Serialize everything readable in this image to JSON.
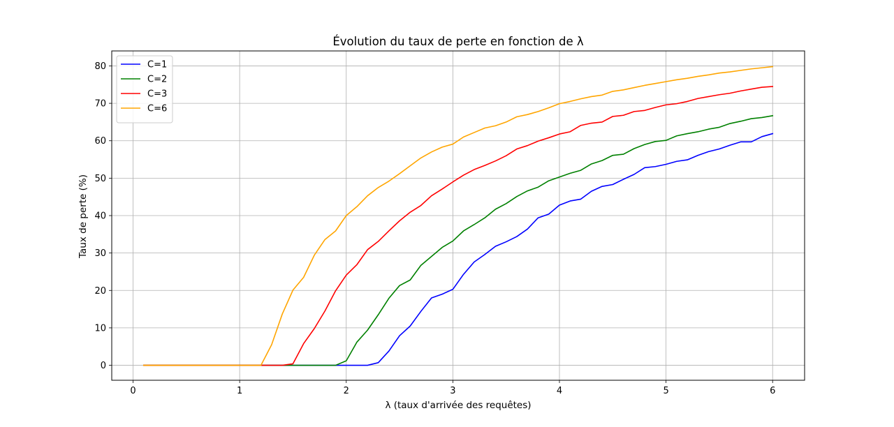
{
  "chart_data": {
    "type": "line",
    "title": "Évolution du taux de perte en fonction de λ",
    "xlabel": "λ (taux d'arrivée des requêtes)",
    "ylabel": "Taux de perte (%)",
    "xlim": [
      -0.2,
      6.3
    ],
    "ylim": [
      -4,
      84
    ],
    "xticks": [
      0,
      1,
      2,
      3,
      4,
      5,
      6
    ],
    "yticks": [
      0,
      10,
      20,
      30,
      40,
      50,
      60,
      70,
      80
    ],
    "grid": true,
    "legend_position": "top-left",
    "x": [
      0.1,
      0.2,
      0.3,
      0.4,
      0.5,
      0.6,
      0.7,
      0.8,
      0.9,
      1.0,
      1.1,
      1.2,
      1.3,
      1.4,
      1.5,
      1.6,
      1.7,
      1.8,
      1.9,
      2.0,
      2.1,
      2.2,
      2.3,
      2.4,
      2.5,
      2.6,
      2.7,
      2.8,
      2.9,
      3.0,
      3.1,
      3.2,
      3.3,
      3.4,
      3.5,
      3.6,
      3.7,
      3.8,
      3.9,
      4.0,
      4.1,
      4.2,
      4.3,
      4.4,
      4.5,
      4.6,
      4.7,
      4.8,
      4.9,
      5.0,
      5.1,
      5.2,
      5.3,
      5.4,
      5.5,
      5.6,
      5.7,
      5.8,
      5.9,
      6.0
    ],
    "series": [
      {
        "name": "C=1",
        "color": "#0000ff",
        "values": [
          0,
          0,
          0,
          0,
          0,
          0,
          0,
          0,
          0,
          0,
          0,
          0,
          0,
          0,
          0,
          0,
          0,
          0,
          0,
          0,
          0,
          0,
          0.7,
          3.8,
          7.9,
          10.5,
          14.4,
          18.0,
          19.0,
          20.3,
          24.3,
          27.6,
          29.6,
          31.8,
          33.0,
          34.4,
          36.4,
          39.4,
          40.4,
          42.8,
          43.9,
          44.4,
          46.5,
          47.8,
          48.3,
          49.7,
          51.0,
          52.8,
          53.1,
          53.7,
          54.5,
          54.9,
          56.1,
          57.1,
          57.8,
          58.8,
          59.7,
          59.7,
          61.1,
          61.9
        ]
      },
      {
        "name": "C=2",
        "color": "#008000",
        "values": [
          0,
          0,
          0,
          0,
          0,
          0,
          0,
          0,
          0,
          0,
          0,
          0,
          0,
          0,
          0,
          0,
          0,
          0,
          0,
          1.2,
          6.2,
          9.4,
          13.5,
          17.9,
          21.3,
          22.8,
          26.7,
          29.1,
          31.5,
          33.2,
          35.9,
          37.6,
          39.4,
          41.7,
          43.2,
          45.1,
          46.6,
          47.6,
          49.3,
          50.3,
          51.3,
          52.1,
          53.8,
          54.7,
          56.1,
          56.4,
          57.9,
          59.0,
          59.8,
          60.1,
          61.3,
          61.9,
          62.4,
          63.1,
          63.6,
          64.6,
          65.2,
          65.9,
          66.2,
          66.7
        ]
      },
      {
        "name": "C=3",
        "color": "#ff0000",
        "values": [
          0,
          0,
          0,
          0,
          0,
          0,
          0,
          0,
          0,
          0,
          0,
          0,
          0,
          0,
          0.4,
          5.8,
          9.8,
          14.5,
          19.9,
          24.1,
          26.9,
          30.9,
          33.1,
          35.9,
          38.6,
          40.9,
          42.7,
          45.3,
          47.1,
          49.0,
          50.8,
          52.3,
          53.4,
          54.6,
          56.0,
          57.8,
          58.7,
          59.9,
          60.8,
          61.8,
          62.4,
          64.1,
          64.7,
          65.0,
          66.5,
          66.8,
          67.8,
          68.1,
          68.9,
          69.6,
          69.9,
          70.5,
          71.3,
          71.8,
          72.3,
          72.7,
          73.3,
          73.8,
          74.3,
          74.5
        ]
      },
      {
        "name": "C=6",
        "color": "#ffa500",
        "values": [
          0,
          0,
          0,
          0,
          0,
          0,
          0,
          0,
          0,
          0,
          0,
          0,
          5.5,
          13.7,
          20.1,
          23.5,
          29.4,
          33.6,
          35.9,
          40.0,
          42.4,
          45.3,
          47.5,
          49.2,
          51.2,
          53.3,
          55.4,
          57.0,
          58.3,
          59.1,
          61.0,
          62.2,
          63.4,
          64.0,
          65.0,
          66.4,
          67.0,
          67.8,
          68.8,
          69.9,
          70.5,
          71.2,
          71.8,
          72.2,
          73.2,
          73.6,
          74.2,
          74.8,
          75.3,
          75.8,
          76.3,
          76.7,
          77.2,
          77.6,
          78.1,
          78.4,
          78.8,
          79.2,
          79.5,
          79.8
        ]
      }
    ]
  }
}
